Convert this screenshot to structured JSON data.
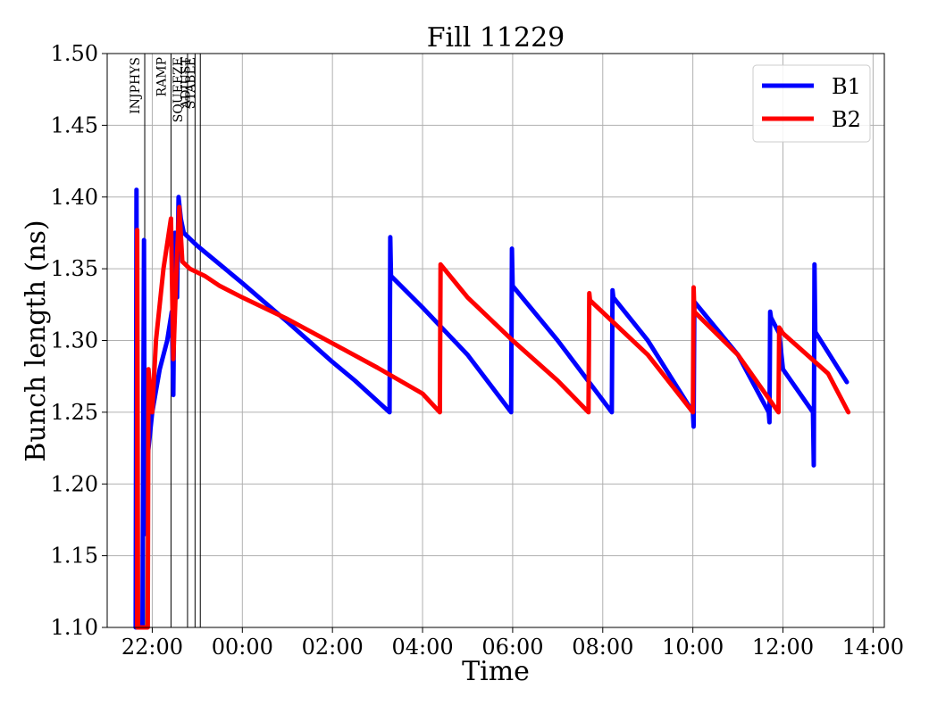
{
  "chart_data": {
    "type": "line",
    "title": "Fill 11229",
    "xlabel": "Time",
    "ylabel": "Bunch length (ns)",
    "x_unit": "time of day (HH:MM, starting previous evening)",
    "xticks": [
      "22:00",
      "00:00",
      "02:00",
      "04:00",
      "06:00",
      "08:00",
      "10:00",
      "12:00",
      "14:00"
    ],
    "xtick_values": [
      "21:00+1h",
      "00:00",
      "02:00",
      "04:00",
      "06:00",
      "08:00",
      "10:00",
      "12:00",
      "14:00"
    ],
    "xlim": [
      "21:00",
      "14:15"
    ],
    "yticks": [
      "1.10",
      "1.15",
      "1.20",
      "1.25",
      "1.30",
      "1.35",
      "1.40",
      "1.45",
      "1.50"
    ],
    "ylim": [
      1.1,
      1.5
    ],
    "grid": true,
    "legend_position": "top-right",
    "mode_markers": [
      {
        "label": "INJPHYS",
        "time": "21:50"
      },
      {
        "label": "RAMP",
        "time": "22:25"
      },
      {
        "label": "SQUEEZE",
        "time": "22:47"
      },
      {
        "label": "ADJUST",
        "time": "22:57"
      },
      {
        "label": "STABLE",
        "time": "23:04"
      }
    ],
    "series": [
      {
        "name": "B1",
        "color": "#0000ff",
        "points": [
          [
            "21:38",
            1.1
          ],
          [
            "21:39",
            1.405
          ],
          [
            "21:40",
            1.1
          ],
          [
            "21:47",
            1.1
          ],
          [
            "21:49",
            1.37
          ],
          [
            "21:50",
            1.165
          ],
          [
            "21:54",
            1.22
          ],
          [
            "22:00",
            1.25
          ],
          [
            "22:10",
            1.28
          ],
          [
            "22:20",
            1.3
          ],
          [
            "22:26",
            1.32
          ],
          [
            "22:28",
            1.262
          ],
          [
            "22:30",
            1.375
          ],
          [
            "22:33",
            1.33
          ],
          [
            "22:35",
            1.4
          ],
          [
            "22:38",
            1.385
          ],
          [
            "22:42",
            1.375
          ],
          [
            "23:00",
            1.366
          ],
          [
            "00:00",
            1.34
          ],
          [
            "01:00",
            1.313
          ],
          [
            "02:00",
            1.285
          ],
          [
            "02:30",
            1.272
          ],
          [
            "03:16",
            1.25
          ],
          [
            "03:17",
            1.372
          ],
          [
            "03:18",
            1.345
          ],
          [
            "04:00",
            1.323
          ],
          [
            "05:00",
            1.29
          ],
          [
            "05:58",
            1.25
          ],
          [
            "05:59",
            1.364
          ],
          [
            "06:00",
            1.338
          ],
          [
            "07:00",
            1.3
          ],
          [
            "08:12",
            1.25
          ],
          [
            "08:13",
            1.335
          ],
          [
            "08:14",
            1.33
          ],
          [
            "09:00",
            1.3
          ],
          [
            "10:00",
            1.25
          ],
          [
            "10:01",
            1.24
          ],
          [
            "10:02",
            1.327
          ],
          [
            "11:00",
            1.29
          ],
          [
            "11:41",
            1.25
          ],
          [
            "11:42",
            1.243
          ],
          [
            "11:43",
            1.32
          ],
          [
            "11:44",
            1.316
          ],
          [
            "11:55",
            1.305
          ],
          [
            "12:00",
            1.28
          ],
          [
            "12:40",
            1.25
          ],
          [
            "12:41",
            1.213
          ],
          [
            "12:42",
            1.353
          ],
          [
            "12:43",
            1.306
          ],
          [
            "13:25",
            1.271
          ]
        ]
      },
      {
        "name": "B2",
        "color": "#ff0000",
        "points": [
          [
            "21:40",
            1.1
          ],
          [
            "21:40",
            1.377
          ],
          [
            "21:41",
            1.1
          ],
          [
            "21:54",
            1.1
          ],
          [
            "21:55",
            1.28
          ],
          [
            "22:00",
            1.25
          ],
          [
            "22:05",
            1.3
          ],
          [
            "22:15",
            1.35
          ],
          [
            "22:25",
            1.385
          ],
          [
            "22:28",
            1.287
          ],
          [
            "22:33",
            1.36
          ],
          [
            "22:36",
            1.393
          ],
          [
            "22:40",
            1.355
          ],
          [
            "22:50",
            1.35
          ],
          [
            "23:10",
            1.345
          ],
          [
            "23:30",
            1.338
          ],
          [
            "00:00",
            1.33
          ],
          [
            "01:00",
            1.315
          ],
          [
            "02:00",
            1.298
          ],
          [
            "03:00",
            1.281
          ],
          [
            "04:00",
            1.263
          ],
          [
            "04:23",
            1.25
          ],
          [
            "04:24",
            1.353
          ],
          [
            "05:00",
            1.33
          ],
          [
            "06:00",
            1.3
          ],
          [
            "07:00",
            1.272
          ],
          [
            "07:41",
            1.25
          ],
          [
            "07:42",
            1.333
          ],
          [
            "07:43",
            1.328
          ],
          [
            "09:00",
            1.29
          ],
          [
            "10:00",
            1.25
          ],
          [
            "10:01",
            1.337
          ],
          [
            "10:02",
            1.32
          ],
          [
            "11:00",
            1.29
          ],
          [
            "11:54",
            1.25
          ],
          [
            "11:55",
            1.309
          ],
          [
            "12:00",
            1.305
          ],
          [
            "13:00",
            1.277
          ],
          [
            "13:27",
            1.25
          ]
        ]
      }
    ]
  }
}
